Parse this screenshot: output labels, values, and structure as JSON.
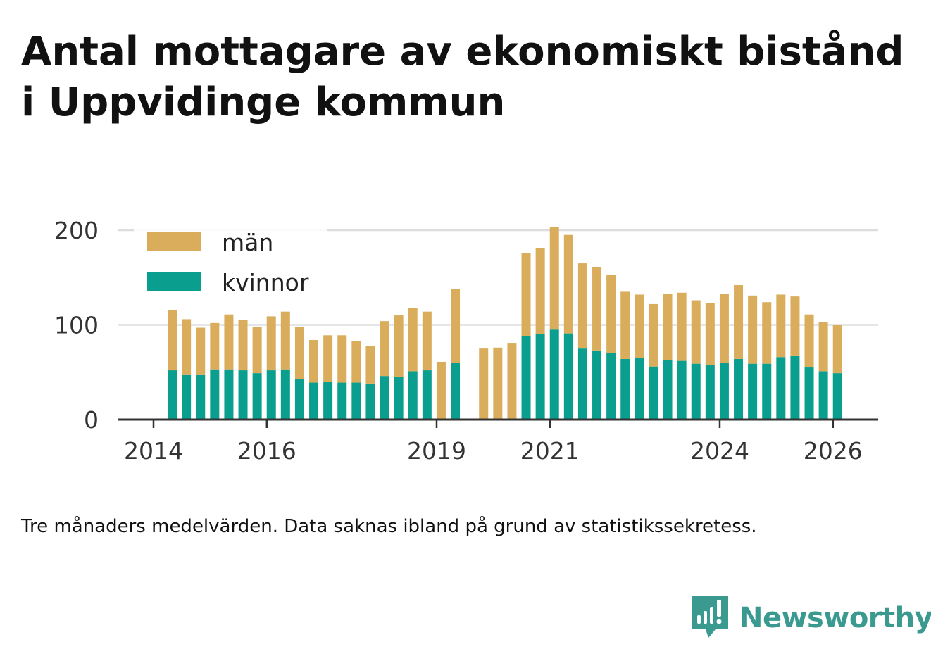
{
  "title": "Antal mottagare av ekonomiskt bistånd i Uppvidinge kommun",
  "caption": "Tre månaders medelvärden. Data saknas ibland på grund av statistikssekretess.",
  "brand": {
    "name": "Newsworthy",
    "icon": "newsworthy-logo-icon",
    "color": "#3a9a8f"
  },
  "colors": {
    "man": "#d9ad5b",
    "kvinnor": "#0a9e8f",
    "grid": "#dddddd",
    "axis": "#333333"
  },
  "chart_data": {
    "type": "bar",
    "stacked": true,
    "title": "Antal mottagare av ekonomiskt bistånd i Uppvidinge kommun",
    "xlabel": "",
    "ylabel": "",
    "ylim": [
      0,
      200
    ],
    "yticks": [
      0,
      100,
      200
    ],
    "xticks": [
      "2014",
      "2016",
      "2019",
      "2021",
      "2024",
      "2026"
    ],
    "xtick_positions": [
      2014.0,
      2016.0,
      2019.0,
      2021.0,
      2024.0,
      2026.0
    ],
    "legend": [
      "män",
      "kvinnor"
    ],
    "legend_position": "top-left",
    "gridlines": true,
    "categories": [
      2014.33,
      2014.58,
      2014.83,
      2015.08,
      2015.33,
      2015.58,
      2015.83,
      2016.08,
      2016.33,
      2016.58,
      2016.83,
      2017.08,
      2017.33,
      2017.58,
      2017.83,
      2018.08,
      2018.33,
      2018.58,
      2018.83,
      2019.08,
      2019.33,
      2019.58,
      2019.83,
      2020.08,
      2020.33,
      2020.58,
      2020.83,
      2021.08,
      2021.33,
      2021.58,
      2021.83,
      2022.08,
      2022.33,
      2022.58,
      2022.83,
      2023.08,
      2023.33,
      2023.58,
      2023.83,
      2024.08,
      2024.33,
      2024.58,
      2024.83,
      2025.08,
      2025.33,
      2025.58,
      2025.83,
      2026.08
    ],
    "series": [
      {
        "name": "kvinnor",
        "values": [
          52,
          47,
          47,
          53,
          53,
          52,
          49,
          52,
          53,
          43,
          39,
          40,
          39,
          39,
          38,
          46,
          45,
          51,
          52,
          0,
          60,
          null,
          0,
          0,
          0,
          88,
          90,
          95,
          91,
          75,
          73,
          70,
          64,
          65,
          56,
          63,
          62,
          59,
          58,
          60,
          64,
          59,
          59,
          66,
          67,
          55,
          51,
          49
        ]
      },
      {
        "name": "män",
        "values": [
          64,
          59,
          50,
          49,
          58,
          53,
          49,
          57,
          61,
          55,
          45,
          49,
          50,
          44,
          40,
          58,
          65,
          67,
          62,
          61,
          78,
          null,
          75,
          76,
          81,
          88,
          91,
          108,
          104,
          90,
          88,
          83,
          71,
          67,
          66,
          70,
          72,
          67,
          65,
          73,
          78,
          72,
          65,
          66,
          63,
          56,
          52,
          51
        ]
      }
    ]
  }
}
